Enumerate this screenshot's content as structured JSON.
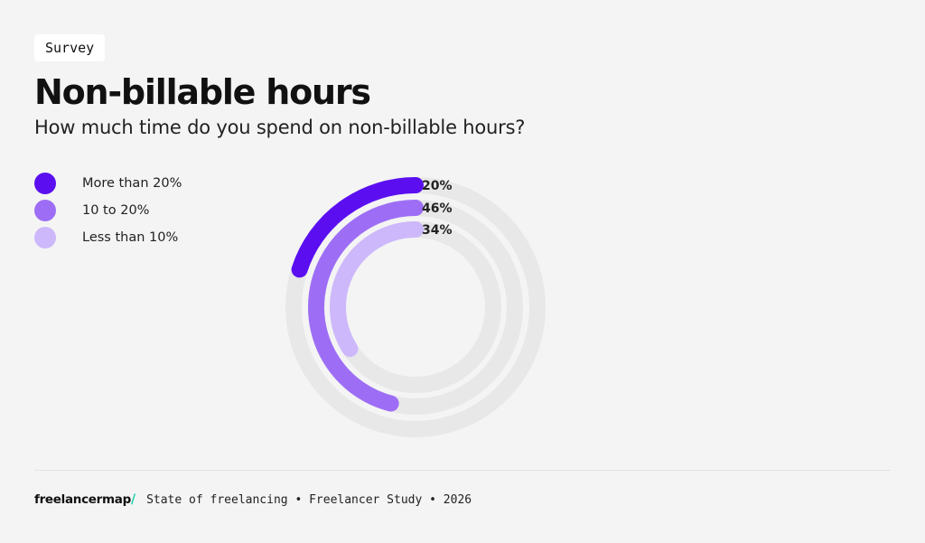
{
  "tag": "Survey",
  "title": "Non-billable hours",
  "subtitle": "How much time do you spend on non-billable hours?",
  "colors": {
    "background": "#f4f4f4",
    "track": "#e8e8e8",
    "accent": "#1fd1a8"
  },
  "chart_data": {
    "type": "radial-bar",
    "series": [
      {
        "name": "More than 20%",
        "value": 20,
        "label": "20%",
        "color": "#5b0ff0"
      },
      {
        "name": "10 to 20%",
        "value": 46,
        "label": "46%",
        "color": "#9d6ef5"
      },
      {
        "name": "Less than 10%",
        "value": 34,
        "label": "34%",
        "color": "#cdb8fb"
      }
    ],
    "max": 100,
    "legend_position": "top-left"
  },
  "footer": {
    "logo": "freelancermap",
    "logo_mark": "/",
    "text": "State of freelancing • Freelancer Study • 2026"
  }
}
